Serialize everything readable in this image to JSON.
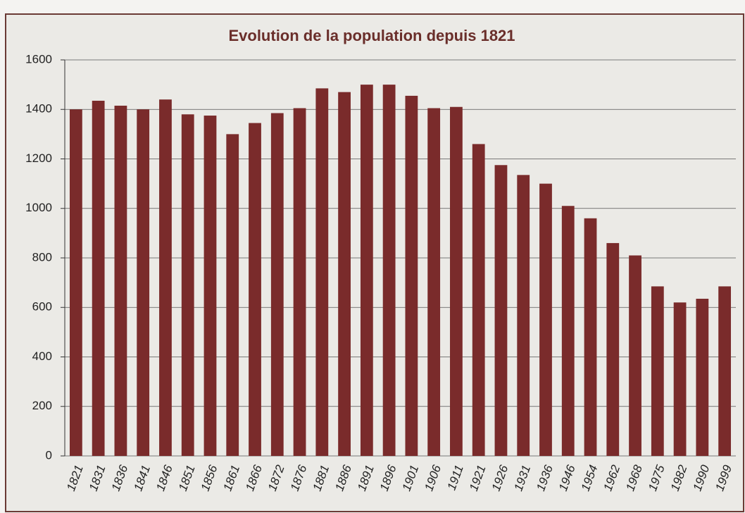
{
  "chart_data": {
    "type": "bar",
    "title": "Evolution de la population depuis 1821",
    "categories": [
      "1821",
      "1831",
      "1836",
      "1841",
      "1846",
      "1851",
      "1856",
      "1861",
      "1866",
      "1872",
      "1876",
      "1881",
      "1886",
      "1891",
      "1896",
      "1901",
      "1906",
      "1911",
      "1921",
      "1926",
      "1931",
      "1936",
      "1946",
      "1954",
      "1962",
      "1968",
      "1975",
      "1982",
      "1990",
      "1999"
    ],
    "values": [
      1400,
      1435,
      1415,
      1400,
      1440,
      1380,
      1375,
      1300,
      1345,
      1385,
      1405,
      1485,
      1470,
      1500,
      1500,
      1455,
      1405,
      1410,
      1260,
      1175,
      1135,
      1100,
      1010,
      960,
      860,
      810,
      685,
      620,
      635,
      685
    ],
    "color": "#7a2b2b",
    "ylim": [
      0,
      1600
    ],
    "yticks": [
      0,
      200,
      400,
      600,
      800,
      1000,
      1200,
      1400,
      1600
    ],
    "grid": true
  }
}
